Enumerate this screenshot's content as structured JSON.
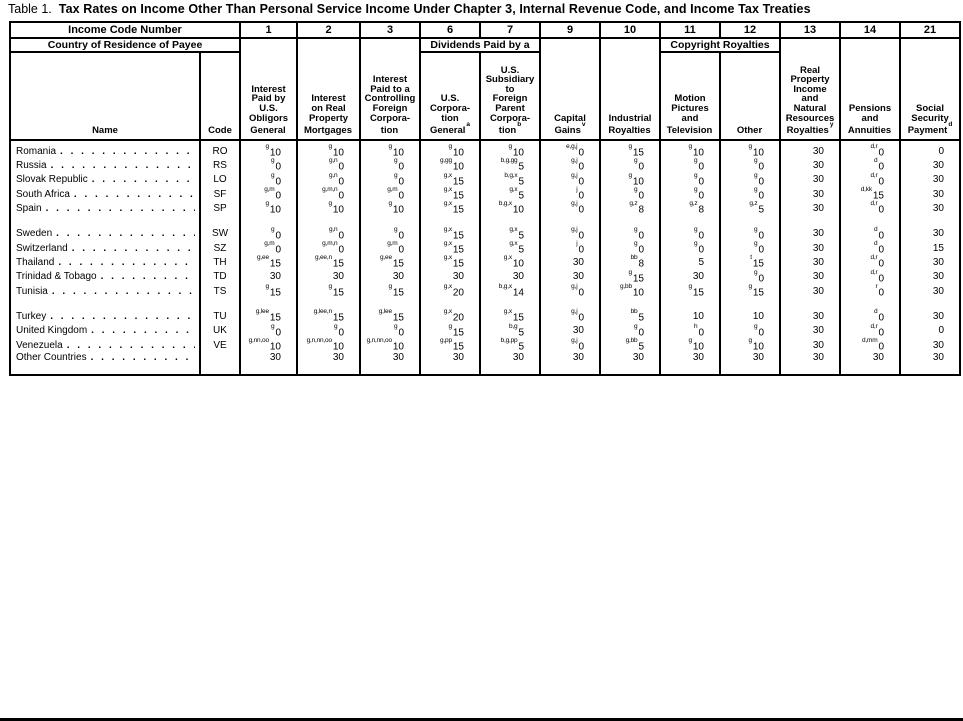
{
  "title": {
    "prefix": "Table 1.",
    "text": "Tax Rates on Income Other Than Personal Service Income Under Chapter 3, Internal Revenue Code, and Income Tax Treaties"
  },
  "header": {
    "income_code_number": "Income Code Number",
    "country_of_residence": "Country of Residence of Payee",
    "dividends_group": "Dividends Paid by a",
    "copyright_group": "Copyright Royalties",
    "name_label": "Name",
    "code_label": "Code",
    "codes": [
      "1",
      "2",
      "3",
      "6",
      "7",
      "9",
      "10",
      "11",
      "12",
      "13",
      "14",
      "21"
    ],
    "columns": [
      {
        "label": "Interest\nPaid by\nU.S.\nObligors\nGeneral",
        "sup": ""
      },
      {
        "label": "Interest\non Real\nProperty\nMortgages",
        "sup": ""
      },
      {
        "label": "Interest\nPaid to a\nControlling\nForeign\nCorpora-\ntion",
        "sup": ""
      },
      {
        "label": "U.S.\nCorpora-\ntion\nGeneral",
        "sup": "a"
      },
      {
        "label": "U.S.\nSubsidiary\nto\nForeign\nParent\nCorpora-\ntion",
        "sup": "b"
      },
      {
        "label": "Capital\nGains",
        "sup": "v"
      },
      {
        "label": "Industrial\nRoyalties",
        "sup": ""
      },
      {
        "label": "Motion\nPictures\nand\nTelevision",
        "sup": ""
      },
      {
        "label": "Other",
        "sup": ""
      },
      {
        "label": "Real\nProperty\nIncome\nand\nNatural\nResources\nRoyalties",
        "sup": "y"
      },
      {
        "label": "Pensions\nand\nAnnuities",
        "sup": ""
      },
      {
        "label": "Social\nSecurity\nPayment",
        "sup": "d"
      }
    ]
  },
  "groups": [
    [
      {
        "name": "Romania",
        "code": "RO",
        "cells": [
          {
            "s": "g",
            "v": "10"
          },
          {
            "s": "g",
            "v": "10"
          },
          {
            "s": "g",
            "v": "10"
          },
          {
            "s": "g",
            "v": "10"
          },
          {
            "s": "g",
            "v": "10"
          },
          {
            "s": "e,g,j",
            "v": "0"
          },
          {
            "s": "g",
            "v": "15"
          },
          {
            "s": "g",
            "v": "10"
          },
          {
            "s": "g",
            "v": "10"
          },
          {
            "s": "",
            "v": "30"
          },
          {
            "s": "d,r",
            "v": "0"
          },
          {
            "s": "",
            "v": "0"
          }
        ]
      },
      {
        "name": "Russia",
        "code": "RS",
        "cells": [
          {
            "s": "g",
            "v": "0"
          },
          {
            "s": "g,n",
            "v": "0"
          },
          {
            "s": "g",
            "v": "0"
          },
          {
            "s": "g,gg",
            "v": "10"
          },
          {
            "s": "b,g,gg",
            "v": "5"
          },
          {
            "s": "g,j",
            "v": "0"
          },
          {
            "s": "g",
            "v": "0"
          },
          {
            "s": "g",
            "v": "0"
          },
          {
            "s": "g",
            "v": "0"
          },
          {
            "s": "",
            "v": "30"
          },
          {
            "s": "d",
            "v": "0"
          },
          {
            "s": "",
            "v": "30"
          }
        ]
      },
      {
        "name": "Slovak Republic",
        "code": "LO",
        "cells": [
          {
            "s": "g",
            "v": "0"
          },
          {
            "s": "g,n",
            "v": "0"
          },
          {
            "s": "g",
            "v": "0"
          },
          {
            "s": "g,x",
            "v": "15"
          },
          {
            "s": "b,g,x",
            "v": "5"
          },
          {
            "s": "g,j",
            "v": "0"
          },
          {
            "s": "g",
            "v": "10"
          },
          {
            "s": "g",
            "v": "0"
          },
          {
            "s": "g",
            "v": "0"
          },
          {
            "s": "",
            "v": "30"
          },
          {
            "s": "d,r",
            "v": "0"
          },
          {
            "s": "",
            "v": "30"
          }
        ]
      },
      {
        "name": "South Africa",
        "code": "SF",
        "cells": [
          {
            "s": "g,m",
            "v": "0"
          },
          {
            "s": "g,m,n",
            "v": "0"
          },
          {
            "s": "g,m",
            "v": "0"
          },
          {
            "s": "g,x",
            "v": "15"
          },
          {
            "s": "g,x",
            "v": "5"
          },
          {
            "s": "j",
            "v": "0"
          },
          {
            "s": "g",
            "v": "0"
          },
          {
            "s": "g",
            "v": "0"
          },
          {
            "s": "g",
            "v": "0"
          },
          {
            "s": "",
            "v": "30"
          },
          {
            "s": "d,kk",
            "v": "15"
          },
          {
            "s": "",
            "v": "30"
          }
        ]
      },
      {
        "name": "Spain",
        "code": "SP",
        "cells": [
          {
            "s": "g",
            "v": "10"
          },
          {
            "s": "g",
            "v": "10"
          },
          {
            "s": "g",
            "v": "10"
          },
          {
            "s": "g,x",
            "v": "15"
          },
          {
            "s": "b,g,x",
            "v": "10"
          },
          {
            "s": "g,j",
            "v": "0"
          },
          {
            "s": "g,z",
            "v": "8"
          },
          {
            "s": "g,z",
            "v": "8"
          },
          {
            "s": "g,z",
            "v": "5"
          },
          {
            "s": "",
            "v": "30"
          },
          {
            "s": "d,r",
            "v": "0"
          },
          {
            "s": "",
            "v": "30"
          }
        ]
      }
    ],
    [
      {
        "name": "Sweden",
        "code": "SW",
        "cells": [
          {
            "s": "g",
            "v": "0"
          },
          {
            "s": "g,n",
            "v": "0"
          },
          {
            "s": "g",
            "v": "0"
          },
          {
            "s": "g,x",
            "v": "15"
          },
          {
            "s": "g,x",
            "v": "5"
          },
          {
            "s": "g,j",
            "v": "0"
          },
          {
            "s": "g",
            "v": "0"
          },
          {
            "s": "g",
            "v": "0"
          },
          {
            "s": "g",
            "v": "0"
          },
          {
            "s": "",
            "v": "30"
          },
          {
            "s": "d",
            "v": "0"
          },
          {
            "s": "",
            "v": "30"
          }
        ]
      },
      {
        "name": "Switzerland",
        "code": "SZ",
        "cells": [
          {
            "s": "g,m",
            "v": "0"
          },
          {
            "s": "g,m,n",
            "v": "0"
          },
          {
            "s": "g,m",
            "v": "0"
          },
          {
            "s": "g,x",
            "v": "15"
          },
          {
            "s": "g,x",
            "v": "5"
          },
          {
            "s": "j",
            "v": "0"
          },
          {
            "s": "g",
            "v": "0"
          },
          {
            "s": "g",
            "v": "0"
          },
          {
            "s": "g",
            "v": "0"
          },
          {
            "s": "",
            "v": "30"
          },
          {
            "s": "d",
            "v": "0"
          },
          {
            "s": "",
            "v": "15"
          }
        ]
      },
      {
        "name": "Thailand",
        "code": "TH",
        "cells": [
          {
            "s": "g,ee",
            "v": "15"
          },
          {
            "s": "g,ee,n",
            "v": "15"
          },
          {
            "s": "g,ee",
            "v": "15"
          },
          {
            "s": "g,x",
            "v": "15"
          },
          {
            "s": "g,x",
            "v": "10"
          },
          {
            "s": "",
            "v": "30"
          },
          {
            "s": "bb",
            "v": "8"
          },
          {
            "s": "",
            "v": "5"
          },
          {
            "s": "t",
            "v": "15"
          },
          {
            "s": "",
            "v": "30"
          },
          {
            "s": "d,r",
            "v": "0"
          },
          {
            "s": "",
            "v": "30"
          }
        ]
      },
      {
        "name": "Trinidad & Tobago",
        "code": "TD",
        "cells": [
          {
            "s": "",
            "v": "30"
          },
          {
            "s": "",
            "v": "30"
          },
          {
            "s": "",
            "v": "30"
          },
          {
            "s": "",
            "v": "30"
          },
          {
            "s": "",
            "v": "30"
          },
          {
            "s": "",
            "v": "30"
          },
          {
            "s": "g",
            "v": "15"
          },
          {
            "s": "",
            "v": "30"
          },
          {
            "s": "g",
            "v": "0"
          },
          {
            "s": "",
            "v": "30"
          },
          {
            "s": "d,r",
            "v": "0"
          },
          {
            "s": "",
            "v": "30"
          }
        ]
      },
      {
        "name": "Tunisia",
        "code": "TS",
        "cells": [
          {
            "s": "g",
            "v": "15"
          },
          {
            "s": "g",
            "v": "15"
          },
          {
            "s": "g",
            "v": "15"
          },
          {
            "s": "g,x",
            "v": "20"
          },
          {
            "s": "b,g,x",
            "v": "14"
          },
          {
            "s": "g,j",
            "v": "0"
          },
          {
            "s": "g,bb",
            "v": "10"
          },
          {
            "s": "g",
            "v": "15"
          },
          {
            "s": "g",
            "v": "15"
          },
          {
            "s": "",
            "v": "30"
          },
          {
            "s": "r",
            "v": "0"
          },
          {
            "s": "",
            "v": "30"
          }
        ]
      }
    ],
    [
      {
        "name": "Turkey",
        "code": "TU",
        "cells": [
          {
            "s": "g,lee",
            "v": "15"
          },
          {
            "s": "g,lee,n",
            "v": "15"
          },
          {
            "s": "g,lee",
            "v": "15"
          },
          {
            "s": "g,x",
            "v": "20"
          },
          {
            "s": "g,x",
            "v": "15"
          },
          {
            "s": "g,j",
            "v": "0"
          },
          {
            "s": "bb",
            "v": "5"
          },
          {
            "s": "",
            "v": "10"
          },
          {
            "s": "",
            "v": "10"
          },
          {
            "s": "",
            "v": "30"
          },
          {
            "s": "d",
            "v": "0"
          },
          {
            "s": "",
            "v": "30"
          }
        ]
      },
      {
        "name": "United Kingdom",
        "code": "UK",
        "cells": [
          {
            "s": "g",
            "v": "0"
          },
          {
            "s": "g",
            "v": "0"
          },
          {
            "s": "g",
            "v": "0"
          },
          {
            "s": "g",
            "v": "15"
          },
          {
            "s": "b,g",
            "v": "5"
          },
          {
            "s": "",
            "v": "30"
          },
          {
            "s": "g",
            "v": "0"
          },
          {
            "s": "h",
            "v": "0"
          },
          {
            "s": "g",
            "v": "0"
          },
          {
            "s": "",
            "v": "30"
          },
          {
            "s": "d,r",
            "v": "0"
          },
          {
            "s": "",
            "v": "0"
          }
        ]
      },
      {
        "name": "Venezuela",
        "code": "VE",
        "cells": [
          {
            "s": "g,nn,oo",
            "v": "10"
          },
          {
            "s": "g,n,nn,oo",
            "v": "10"
          },
          {
            "s": "g,n,nn,oo",
            "v": "10"
          },
          {
            "s": "g,pp",
            "v": "15"
          },
          {
            "s": "b,g,pp",
            "v": "5"
          },
          {
            "s": "g,j",
            "v": "0"
          },
          {
            "s": "g,bb",
            "v": "5"
          },
          {
            "s": "g",
            "v": "10"
          },
          {
            "s": "g",
            "v": "10"
          },
          {
            "s": "",
            "v": "30"
          },
          {
            "s": "d,mm",
            "v": "0"
          },
          {
            "s": "",
            "v": "30"
          }
        ]
      },
      {
        "name": "Other Countries",
        "code": "",
        "cells": [
          {
            "s": "",
            "v": "30"
          },
          {
            "s": "",
            "v": "30"
          },
          {
            "s": "",
            "v": "30"
          },
          {
            "s": "",
            "v": "30"
          },
          {
            "s": "",
            "v": "30"
          },
          {
            "s": "",
            "v": "30"
          },
          {
            "s": "",
            "v": "30"
          },
          {
            "s": "",
            "v": "30"
          },
          {
            "s": "",
            "v": "30"
          },
          {
            "s": "",
            "v": "30"
          },
          {
            "s": "",
            "v": "30"
          },
          {
            "s": "",
            "v": "30"
          }
        ]
      }
    ]
  ]
}
